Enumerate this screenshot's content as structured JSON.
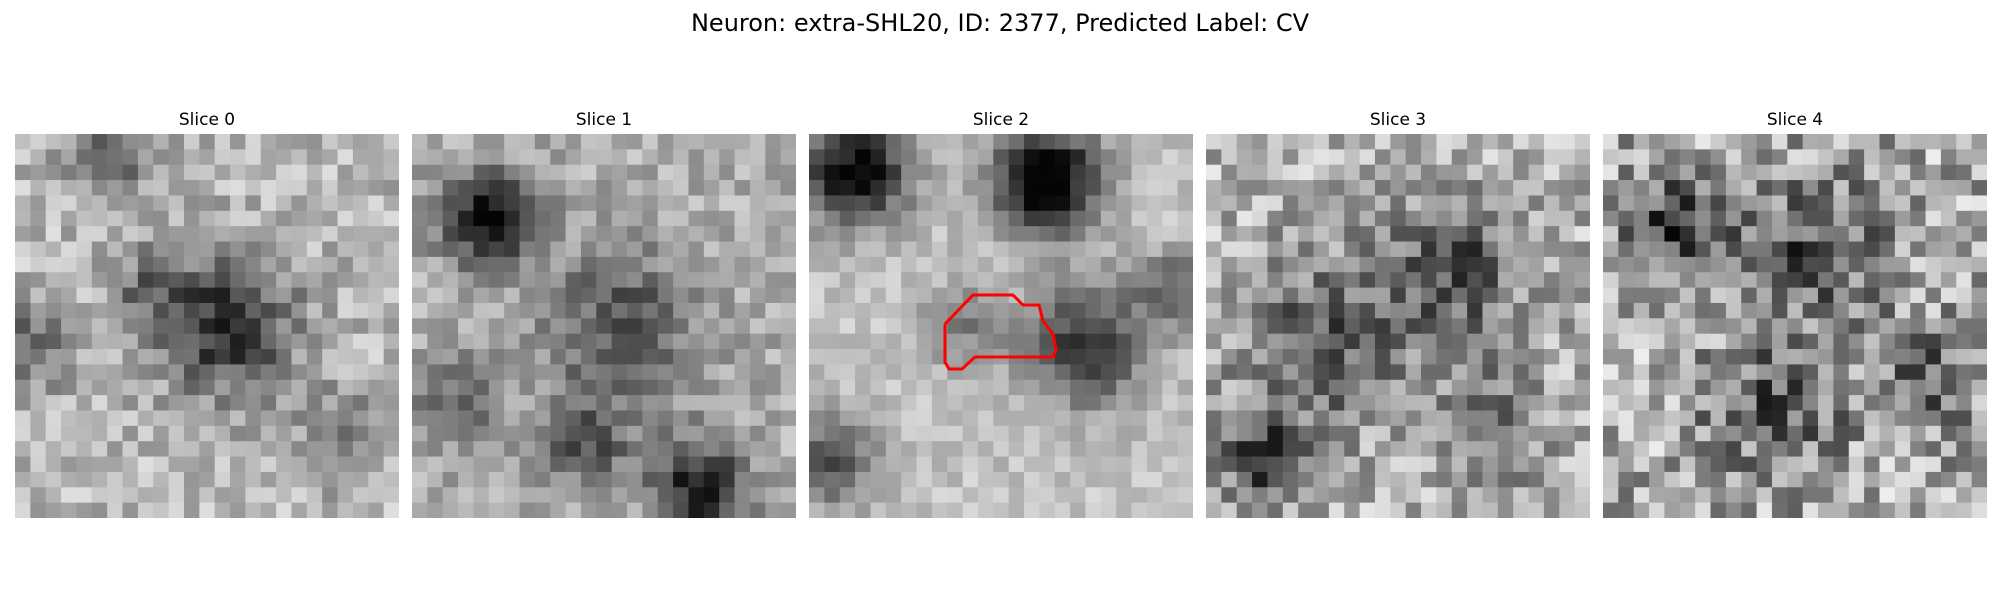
{
  "figure": {
    "title": "Neuron: extra-SHL20, ID: 2377, Predicted Label: CV"
  },
  "slices": [
    {
      "title": "Slice 0",
      "contour": false
    },
    {
      "title": "Slice 1",
      "contour": false
    },
    {
      "title": "Slice 2",
      "contour": true
    },
    {
      "title": "Slice 3",
      "contour": false
    },
    {
      "title": "Slice 4",
      "contour": false
    }
  ],
  "colors": {
    "contour": "#ff0000"
  },
  "grid_size": 25
}
